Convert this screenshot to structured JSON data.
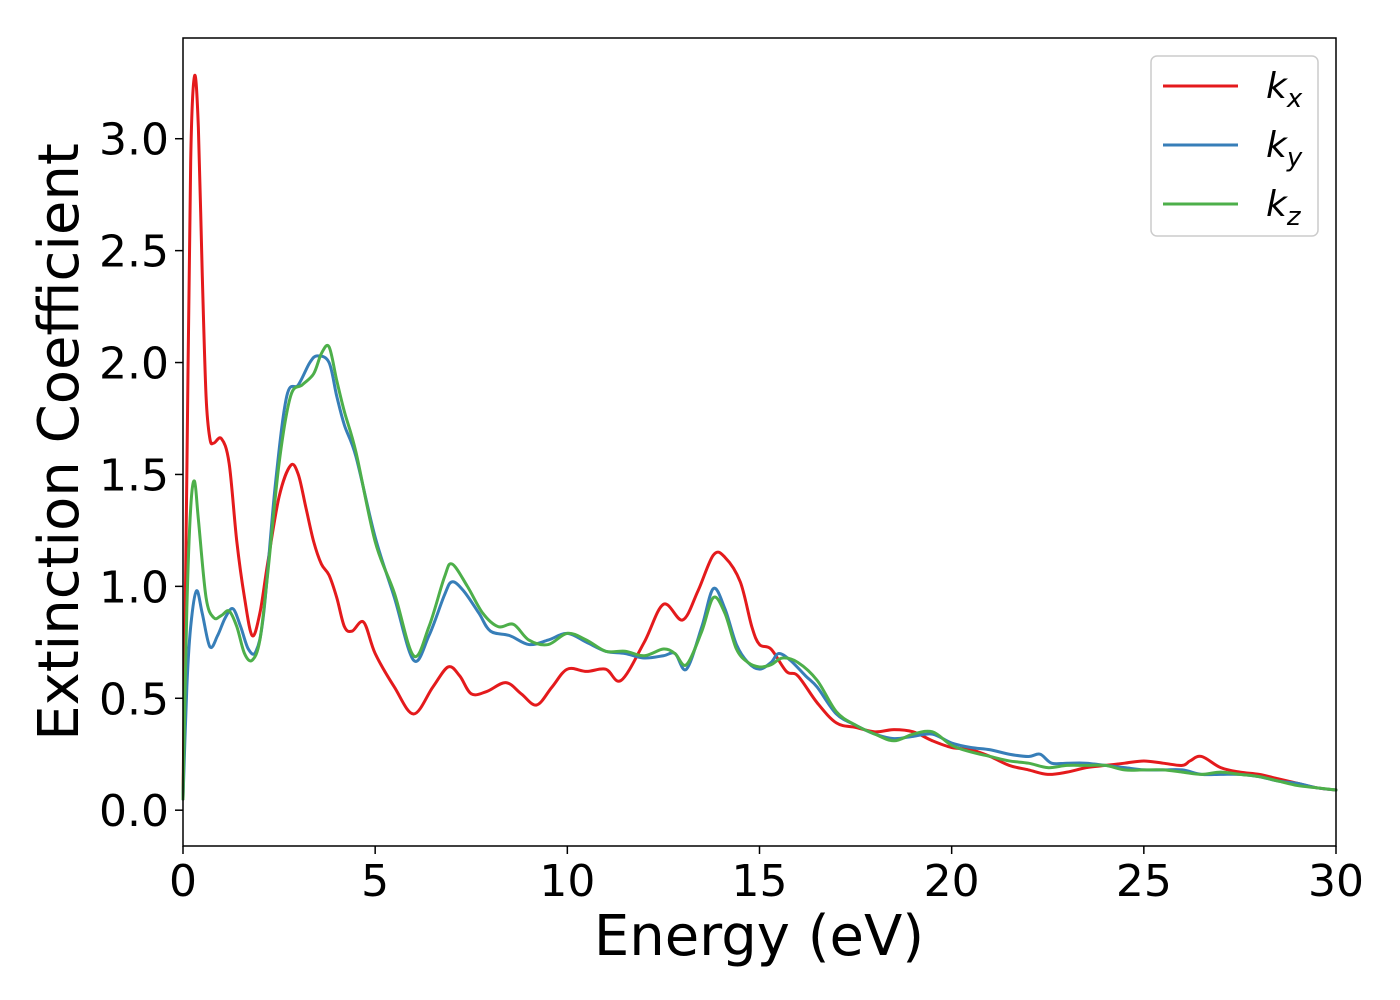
{
  "chart_data": {
    "type": "line",
    "title": "",
    "xlabel": "Energy (eV)",
    "ylabel": "Extinction Coefficient",
    "xlim": [
      0,
      30
    ],
    "ylim": [
      -0.16,
      3.45
    ],
    "xticks": [
      "0",
      "5",
      "10",
      "15",
      "20",
      "25",
      "30"
    ],
    "yticks": [
      "0.0",
      "0.5",
      "1.0",
      "1.5",
      "2.0",
      "2.5",
      "3.0"
    ],
    "grid": false,
    "legend": {
      "placement": "top-right"
    },
    "series": [
      {
        "name": "k",
        "subscript": "x",
        "color": "#e41a1c",
        "x": [
          0,
          0.1,
          0.2,
          0.3,
          0.4,
          0.5,
          0.6,
          0.7,
          0.8,
          1.0,
          1.2,
          1.4,
          1.6,
          1.8,
          2.0,
          2.2,
          2.5,
          2.8,
          3.0,
          3.2,
          3.4,
          3.6,
          3.8,
          4.0,
          4.2,
          4.4,
          4.7,
          5.0,
          5.5,
          6.0,
          6.5,
          6.9,
          7.2,
          7.5,
          7.9,
          8.4,
          8.8,
          9.2,
          9.6,
          10.0,
          10.5,
          11.0,
          11.4,
          12.0,
          12.5,
          13.0,
          13.4,
          13.8,
          14.1,
          14.5,
          14.8,
          15.0,
          15.3,
          15.7,
          16.0,
          16.5,
          17.0,
          17.5,
          18.0,
          18.5,
          19.0,
          19.5,
          20.0,
          20.5,
          21.0,
          21.5,
          22.0,
          22.5,
          23.0,
          23.5,
          24.0,
          24.5,
          25.0,
          25.5,
          26.0,
          26.2,
          26.5,
          27.0,
          27.5,
          28.0,
          28.5,
          29.0,
          29.5,
          30.0
        ],
        "values": [
          0.05,
          1.5,
          2.9,
          3.28,
          3.05,
          2.4,
          1.85,
          1.66,
          1.64,
          1.66,
          1.55,
          1.2,
          0.95,
          0.78,
          0.88,
          1.1,
          1.4,
          1.54,
          1.5,
          1.35,
          1.2,
          1.1,
          1.05,
          0.95,
          0.82,
          0.8,
          0.84,
          0.7,
          0.55,
          0.43,
          0.55,
          0.64,
          0.6,
          0.52,
          0.53,
          0.57,
          0.52,
          0.47,
          0.55,
          0.63,
          0.62,
          0.63,
          0.58,
          0.75,
          0.92,
          0.85,
          0.98,
          1.14,
          1.13,
          1.02,
          0.82,
          0.74,
          0.72,
          0.62,
          0.6,
          0.48,
          0.39,
          0.37,
          0.35,
          0.36,
          0.35,
          0.31,
          0.28,
          0.27,
          0.24,
          0.2,
          0.18,
          0.16,
          0.17,
          0.19,
          0.2,
          0.21,
          0.22,
          0.21,
          0.2,
          0.22,
          0.24,
          0.19,
          0.17,
          0.16,
          0.14,
          0.12,
          0.1,
          0.09
        ]
      },
      {
        "name": "k",
        "subscript": "y",
        "color": "#377eb8",
        "x": [
          0,
          0.1,
          0.2,
          0.35,
          0.5,
          0.7,
          0.9,
          1.1,
          1.3,
          1.5,
          1.7,
          1.9,
          2.1,
          2.4,
          2.7,
          3.0,
          3.3,
          3.5,
          3.8,
          4.0,
          4.2,
          4.5,
          5.0,
          5.5,
          6.0,
          6.4,
          6.8,
          7.0,
          7.3,
          7.7,
          8.0,
          8.5,
          9.0,
          9.5,
          10.0,
          10.5,
          11.0,
          11.5,
          12.0,
          12.5,
          12.8,
          13.1,
          13.5,
          13.8,
          14.1,
          14.4,
          14.7,
          15.0,
          15.3,
          15.5,
          15.8,
          16.2,
          16.5,
          17.0,
          17.5,
          18.0,
          18.5,
          19.0,
          19.5,
          20.0,
          20.5,
          21.0,
          21.5,
          22.0,
          22.3,
          22.6,
          23.0,
          23.5,
          24.0,
          24.5,
          25.0,
          25.5,
          26.0,
          26.5,
          27.0,
          27.5,
          28.0,
          28.5,
          29.0,
          29.5,
          30.0
        ],
        "values": [
          0.05,
          0.55,
          0.82,
          0.98,
          0.88,
          0.73,
          0.78,
          0.86,
          0.9,
          0.82,
          0.72,
          0.71,
          0.88,
          1.45,
          1.85,
          1.9,
          2.0,
          2.03,
          2.0,
          1.85,
          1.72,
          1.58,
          1.22,
          0.95,
          0.67,
          0.78,
          0.96,
          1.02,
          0.98,
          0.88,
          0.8,
          0.78,
          0.74,
          0.76,
          0.79,
          0.75,
          0.71,
          0.7,
          0.68,
          0.69,
          0.7,
          0.63,
          0.82,
          0.99,
          0.9,
          0.74,
          0.66,
          0.63,
          0.66,
          0.7,
          0.67,
          0.6,
          0.55,
          0.43,
          0.38,
          0.34,
          0.32,
          0.33,
          0.34,
          0.3,
          0.28,
          0.27,
          0.25,
          0.24,
          0.25,
          0.21,
          0.21,
          0.21,
          0.2,
          0.19,
          0.18,
          0.18,
          0.18,
          0.16,
          0.16,
          0.16,
          0.15,
          0.13,
          0.12,
          0.1,
          0.09
        ]
      },
      {
        "name": "k",
        "subscript": "z",
        "color": "#4daf4a",
        "x": [
          0,
          0.1,
          0.2,
          0.3,
          0.4,
          0.6,
          0.8,
          1.0,
          1.2,
          1.4,
          1.6,
          1.8,
          2.0,
          2.2,
          2.5,
          2.8,
          3.1,
          3.4,
          3.6,
          3.8,
          4.0,
          4.2,
          4.5,
          5.0,
          5.5,
          6.0,
          6.4,
          6.8,
          7.0,
          7.4,
          7.8,
          8.2,
          8.6,
          9.0,
          9.5,
          10.0,
          10.5,
          11.0,
          11.5,
          12.0,
          12.5,
          12.8,
          13.1,
          13.5,
          13.8,
          14.1,
          14.4,
          14.7,
          15.0,
          15.3,
          15.6,
          16.0,
          16.5,
          17.0,
          17.5,
          18.0,
          18.5,
          19.0,
          19.5,
          20.0,
          20.5,
          21.0,
          21.5,
          22.0,
          22.5,
          23.0,
          23.5,
          24.0,
          24.5,
          25.0,
          25.5,
          26.0,
          26.5,
          27.0,
          27.5,
          28.0,
          28.5,
          29.0,
          29.5,
          30.0
        ],
        "values": [
          0.05,
          0.9,
          1.35,
          1.47,
          1.3,
          0.95,
          0.86,
          0.87,
          0.89,
          0.82,
          0.7,
          0.67,
          0.76,
          1.05,
          1.55,
          1.85,
          1.9,
          1.95,
          2.04,
          2.07,
          1.92,
          1.78,
          1.6,
          1.2,
          0.97,
          0.69,
          0.82,
          1.04,
          1.1,
          1.0,
          0.88,
          0.82,
          0.83,
          0.76,
          0.74,
          0.79,
          0.76,
          0.71,
          0.71,
          0.69,
          0.72,
          0.7,
          0.65,
          0.8,
          0.95,
          0.88,
          0.72,
          0.66,
          0.64,
          0.65,
          0.68,
          0.66,
          0.58,
          0.44,
          0.38,
          0.34,
          0.31,
          0.34,
          0.35,
          0.29,
          0.26,
          0.24,
          0.22,
          0.21,
          0.19,
          0.2,
          0.2,
          0.2,
          0.18,
          0.18,
          0.18,
          0.17,
          0.16,
          0.17,
          0.16,
          0.15,
          0.13,
          0.11,
          0.1,
          0.09
        ]
      }
    ]
  }
}
